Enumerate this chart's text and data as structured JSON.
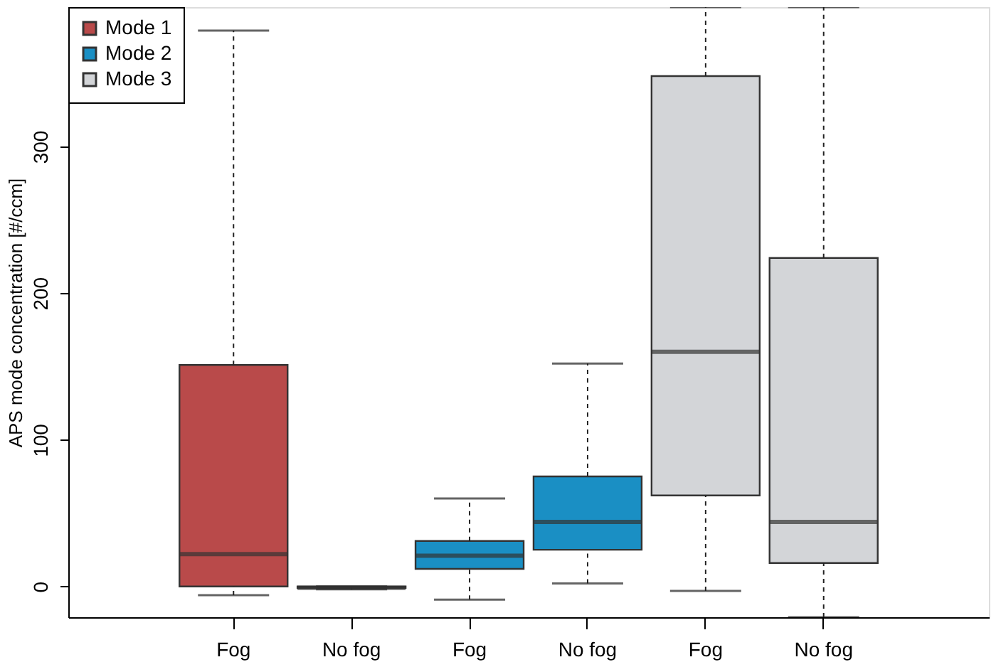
{
  "chart_data": {
    "type": "box",
    "ylabel": "APS mode concentration [#/ccm]",
    "categories": [
      "Fog",
      "No fog",
      "Fog",
      "No fog",
      "Fog",
      "No fog"
    ],
    "ylim": [
      -21,
      395
    ],
    "yticks": [
      0,
      100,
      200,
      300
    ],
    "grid": false,
    "legend": "top left",
    "series": [
      {
        "name": "Mode 1",
        "color": "#b94a4a",
        "boxes": [
          {
            "low": -6,
            "q1": 0,
            "median": 22,
            "q3": 151,
            "high": 379
          },
          {
            "low": -2,
            "q1": -1,
            "median": -1,
            "q3": 0,
            "high": 0
          },
          null,
          null,
          null,
          null
        ]
      },
      {
        "name": "Mode 2",
        "color": "#1a8fc4",
        "boxes": [
          null,
          null,
          {
            "low": -9,
            "q1": 12,
            "median": 21,
            "q3": 31,
            "high": 60
          },
          {
            "low": 2,
            "q1": 25,
            "median": 44,
            "q3": 75,
            "high": 152
          },
          null,
          null
        ]
      },
      {
        "name": "Mode 3",
        "color": "#d3d5d8",
        "boxes": [
          null,
          null,
          null,
          null,
          {
            "low": -3,
            "q1": 62,
            "median": 160,
            "q3": 348,
            "high": 395
          },
          {
            "low": -21,
            "q1": 16,
            "median": 44,
            "q3": 224,
            "high": 395
          }
        ]
      }
    ]
  }
}
